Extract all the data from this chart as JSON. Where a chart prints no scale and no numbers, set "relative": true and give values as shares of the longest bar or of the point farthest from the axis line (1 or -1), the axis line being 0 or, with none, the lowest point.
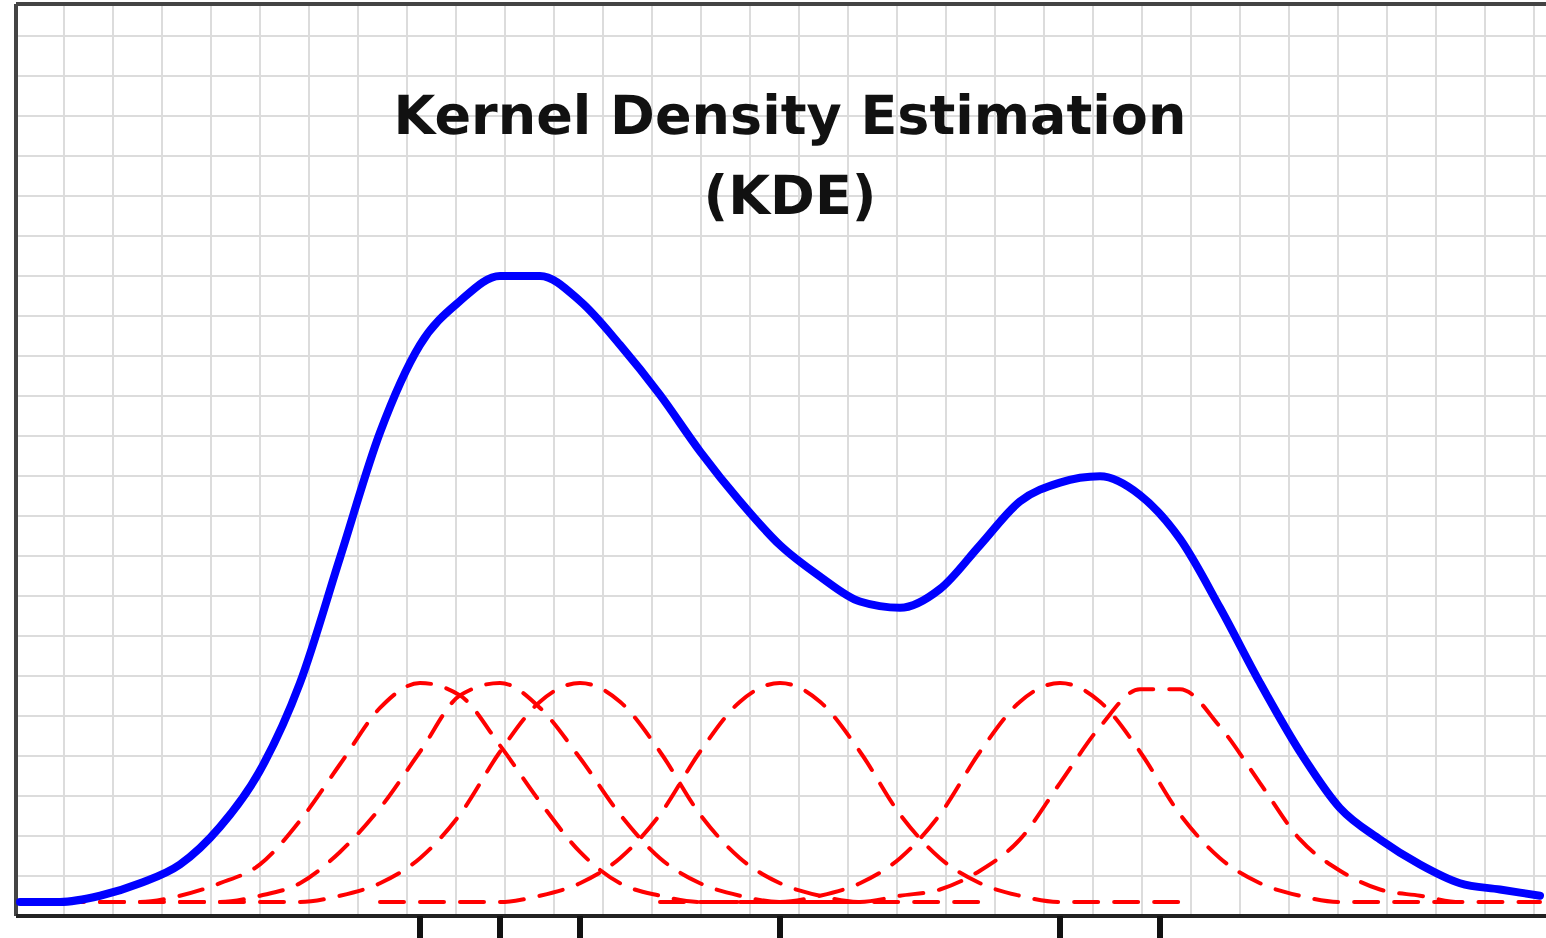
{
  "chart_data": {
    "type": "line",
    "title": "Kernel Density Estimation (KDE)",
    "relative": true,
    "grid": true,
    "categories": [
      null,
      null,
      null,
      null,
      null,
      null,
      null,
      null,
      null,
      null,
      null,
      null,
      null,
      null,
      null,
      null,
      null,
      null,
      null,
      null,
      null,
      null,
      null,
      null,
      null,
      null,
      null,
      null,
      null,
      null,
      null,
      null,
      null,
      null,
      null,
      null,
      null,
      null,
      null
    ],
    "series": [
      {
        "color": "#ff0000",
        "line_style": "dashed",
        "values": [
          null,
          0,
          0,
          0,
          0.01,
          0.03,
          0.06,
          0.13,
          0.22,
          0.31,
          0.35,
          0.33,
          0.25,
          0.16,
          0.08,
          0.03,
          0.01,
          0,
          0,
          0,
          0,
          null,
          null,
          null,
          null,
          null,
          null,
          null,
          null,
          null,
          null,
          null,
          null,
          null,
          null,
          null,
          null,
          null,
          null
        ]
      },
      {
        "color": "#ff0000",
        "line_style": "dashed",
        "values": [
          null,
          null,
          0,
          0,
          0,
          0,
          0.01,
          0.03,
          0.08,
          0.15,
          0.24,
          0.33,
          0.35,
          0.31,
          0.23,
          0.14,
          0.07,
          0.03,
          0.01,
          0,
          0,
          0,
          null,
          null,
          null,
          null,
          null,
          null,
          null,
          null,
          null,
          null,
          null,
          null,
          null,
          null,
          null,
          null,
          null
        ]
      },
      {
        "color": "#ff0000",
        "line_style": "dashed",
        "values": [
          null,
          null,
          null,
          null,
          0,
          0,
          0,
          0,
          0.01,
          0.03,
          0.07,
          0.14,
          0.24,
          0.32,
          0.35,
          0.32,
          0.24,
          0.14,
          0.07,
          0.03,
          0.01,
          0,
          0,
          0,
          0,
          null,
          null,
          null,
          null,
          null,
          null,
          null,
          null,
          null,
          null,
          null,
          null,
          null,
          null
        ]
      },
      {
        "color": "#ff0000",
        "line_style": "dashed",
        "values": [
          null,
          null,
          null,
          null,
          null,
          null,
          null,
          null,
          null,
          0,
          0,
          0,
          0,
          0.01,
          0.03,
          0.07,
          0.14,
          0.24,
          0.32,
          0.35,
          0.32,
          0.24,
          0.14,
          0.07,
          0.03,
          0.01,
          0,
          0,
          0,
          0,
          null,
          null,
          null,
          null,
          null,
          null,
          null,
          null,
          null
        ]
      },
      {
        "color": "#ff0000",
        "line_style": "dashed",
        "values": [
          null,
          null,
          null,
          null,
          null,
          null,
          null,
          null,
          null,
          null,
          null,
          null,
          null,
          null,
          null,
          null,
          0,
          0,
          0,
          0,
          0.01,
          0.03,
          0.07,
          0.14,
          0.24,
          0.32,
          0.35,
          0.32,
          0.24,
          0.14,
          0.07,
          0.03,
          0.01,
          0,
          0,
          0,
          0,
          null,
          null
        ]
      },
      {
        "color": "#ff0000",
        "line_style": "dashed",
        "values": [
          null,
          null,
          null,
          null,
          null,
          null,
          null,
          null,
          null,
          null,
          null,
          null,
          null,
          null,
          null,
          null,
          null,
          null,
          null,
          0,
          0,
          0,
          0.01,
          0.02,
          0.05,
          0.1,
          0.19,
          0.28,
          0.34,
          0.34,
          0.28,
          0.19,
          0.1,
          0.05,
          0.02,
          0.01,
          0,
          0,
          0
        ]
      },
      {
        "color": "#0000ff",
        "line_style": "solid",
        "values": [
          0,
          0,
          0.01,
          0.03,
          0.06,
          0.12,
          0.21,
          0.35,
          0.55,
          0.75,
          0.89,
          0.96,
          1,
          1.0,
          0.96,
          0.89,
          0.81,
          0.72,
          0.64,
          0.57,
          0.52,
          0.48,
          0.47,
          0.5,
          0.57,
          0.64,
          0.67,
          0.68,
          0.65,
          0.58,
          0.47,
          0.35,
          0.24,
          0.15,
          0.1,
          0.06,
          0.03,
          0.02,
          0.01
        ]
      }
    ]
  }
}
